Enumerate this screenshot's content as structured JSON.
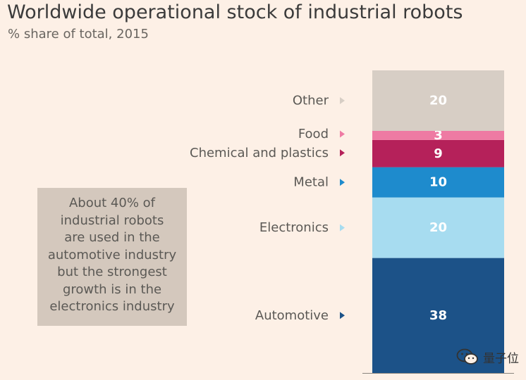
{
  "header": {
    "title": "Worldwide operational stock of industrial robots",
    "subtitle": "% share of total, 2015"
  },
  "annotation": {
    "lines": [
      "About 40% of",
      "industrial robots",
      "are used in the",
      "automotive industry",
      "but the strongest",
      "growth is in the",
      "electronics industry"
    ]
  },
  "watermark": {
    "text": "量子位",
    "icon": "wechat-icon"
  },
  "chart_data": {
    "type": "bar",
    "stacked": true,
    "orientation": "vertical",
    "categories": [
      "Automotive",
      "Electronics",
      "Metal",
      "Chemical and plastics",
      "Food",
      "Other"
    ],
    "values": [
      38,
      20,
      10,
      9,
      3,
      20
    ],
    "colors": [
      "#1c5288",
      "#a7dcf0",
      "#1e8bcd",
      "#b5215a",
      "#ee7aa3",
      "#d7cec5"
    ],
    "value_label_color": "#ffffff",
    "ylim": [
      0,
      100
    ],
    "grid": false,
    "legend": "none"
  }
}
